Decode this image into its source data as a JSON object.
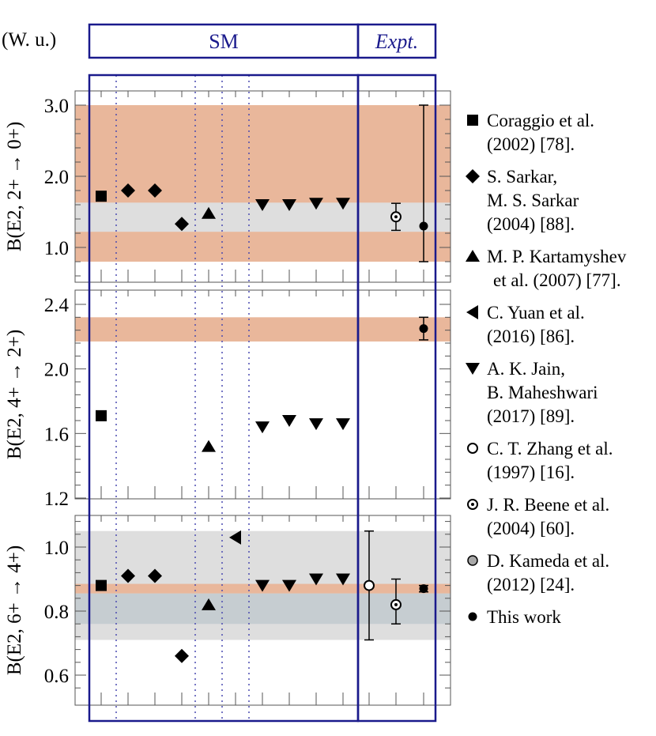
{
  "units_label": "(W. u.)",
  "headers": {
    "sm": "SM",
    "expt": "Expt."
  },
  "colors": {
    "orange_band": "#e9b79b",
    "gray_band": "#dedede",
    "overlap_band": "#c6cdd1",
    "frame": "#1a1a8c",
    "marker": "#000000",
    "gray_marker": "#a8a8a8"
  },
  "legend": [
    {
      "marker": "square",
      "lines": [
        "Coraggio et al.",
        "(2002) [78]."
      ]
    },
    {
      "marker": "diamond",
      "lines": [
        "S. Sarkar,",
        "M. S. Sarkar",
        "(2004) [88]."
      ]
    },
    {
      "marker": "triangle-up",
      "lines": [
        "M. P. Kartamyshev",
        "et al. (2007) [77]."
      ]
    },
    {
      "marker": "triangle-left",
      "lines": [
        "C. Yuan et al.",
        "(2016) [86]."
      ]
    },
    {
      "marker": "triangle-down",
      "lines": [
        "A. K. Jain,",
        "B. Maheshwari",
        "(2017) [89]."
      ]
    },
    {
      "marker": "open-circle",
      "lines": [
        "C. T. Zhang et al.",
        "(1997) [16]."
      ]
    },
    {
      "marker": "dot-circle",
      "lines": [
        "J. R. Beene et al.",
        "(2004) [60]."
      ]
    },
    {
      "marker": "gray-circle",
      "lines": [
        "D. Kameda et al.",
        "(2012) [24]."
      ]
    },
    {
      "marker": "filled-circle",
      "lines": [
        "This work"
      ]
    }
  ],
  "chart_data": [
    {
      "type": "scatter",
      "ylabel": "B(E2, 2+ → 0+)",
      "ylim": [
        0.55,
        3.15
      ],
      "yticks": [
        "1.0",
        "2.0",
        "3.0"
      ],
      "ytick_values": [
        1.0,
        2.0,
        3.0
      ],
      "bands": [
        {
          "color": "orange",
          "ymin": 0.8,
          "ymax": 3.0
        },
        {
          "color": "gray",
          "ymin": 1.22,
          "ymax": 1.63
        }
      ],
      "points": [
        {
          "slot": 1,
          "marker": "square",
          "y": 1.72
        },
        {
          "slot": 2,
          "marker": "diamond",
          "y": 1.8
        },
        {
          "slot": 3,
          "marker": "diamond",
          "y": 1.8
        },
        {
          "slot": 4,
          "marker": "diamond",
          "y": 1.33
        },
        {
          "slot": 5,
          "marker": "triangle-up",
          "y": 1.48
        },
        {
          "slot": 7,
          "marker": "triangle-down",
          "y": 1.6
        },
        {
          "slot": 8,
          "marker": "triangle-down",
          "y": 1.6
        },
        {
          "slot": 9,
          "marker": "triangle-down",
          "y": 1.62
        },
        {
          "slot": 10,
          "marker": "triangle-down",
          "y": 1.62
        },
        {
          "slot": 12,
          "marker": "dot-circle",
          "y": 1.43,
          "ylo": 1.24,
          "yhi": 1.62
        },
        {
          "slot": 13,
          "marker": "filled-circle",
          "y": 1.3,
          "ylo": 0.8,
          "yhi": 3.0
        }
      ]
    },
    {
      "type": "scatter",
      "ylabel": "B(E2, 4+ → 2+)",
      "ylim": [
        1.2,
        2.4
      ],
      "yticks": [
        "1.2",
        "1.6",
        "2.0",
        "2.4"
      ],
      "ytick_values": [
        1.2,
        1.6,
        2.0,
        2.4
      ],
      "bands": [
        {
          "color": "orange",
          "ymin": 2.17,
          "ymax": 2.32
        }
      ],
      "points": [
        {
          "slot": 1,
          "marker": "square",
          "y": 1.71
        },
        {
          "slot": 5,
          "marker": "triangle-up",
          "y": 1.52
        },
        {
          "slot": 7,
          "marker": "triangle-down",
          "y": 1.64
        },
        {
          "slot": 8,
          "marker": "triangle-down",
          "y": 1.68
        },
        {
          "slot": 9,
          "marker": "triangle-down",
          "y": 1.66
        },
        {
          "slot": 10,
          "marker": "triangle-down",
          "y": 1.66
        },
        {
          "slot": 13,
          "marker": "filled-circle",
          "y": 2.25,
          "ylo": 2.18,
          "yhi": 2.32
        }
      ]
    },
    {
      "type": "scatter",
      "ylabel": "B(E2, 6+ → 4+)",
      "ylim": [
        0.53,
        1.11
      ],
      "yticks": [
        "0.6",
        "0.8",
        "1.0"
      ],
      "ytick_values": [
        0.6,
        0.8,
        1.0
      ],
      "bands": [
        {
          "color": "gray",
          "ymin": 0.71,
          "ymax": 1.05
        },
        {
          "color": "orange",
          "ymin": 0.855,
          "ymax": 0.885
        },
        {
          "color": "overlap",
          "ymin": 0.76,
          "ymax": 0.855
        }
      ],
      "points": [
        {
          "slot": 1,
          "marker": "square",
          "y": 0.88
        },
        {
          "slot": 2,
          "marker": "diamond",
          "y": 0.91
        },
        {
          "slot": 3,
          "marker": "diamond",
          "y": 0.91
        },
        {
          "slot": 4,
          "marker": "diamond",
          "y": 0.66
        },
        {
          "slot": 5,
          "marker": "triangle-up",
          "y": 0.82
        },
        {
          "slot": 6,
          "marker": "triangle-left",
          "y": 1.03
        },
        {
          "slot": 7,
          "marker": "triangle-down",
          "y": 0.88
        },
        {
          "slot": 8,
          "marker": "triangle-down",
          "y": 0.88
        },
        {
          "slot": 9,
          "marker": "triangle-down",
          "y": 0.9
        },
        {
          "slot": 10,
          "marker": "triangle-down",
          "y": 0.9
        },
        {
          "slot": 11,
          "marker": "open-circle",
          "y": 0.88,
          "ylo": 0.71,
          "yhi": 1.05
        },
        {
          "slot": 12,
          "marker": "dot-circle",
          "y": 0.82,
          "ylo": 0.76,
          "yhi": 0.9
        },
        {
          "slot": 13,
          "marker": "filled-circle",
          "y": 0.87,
          "ylo": 0.86,
          "yhi": 0.88
        }
      ]
    }
  ]
}
